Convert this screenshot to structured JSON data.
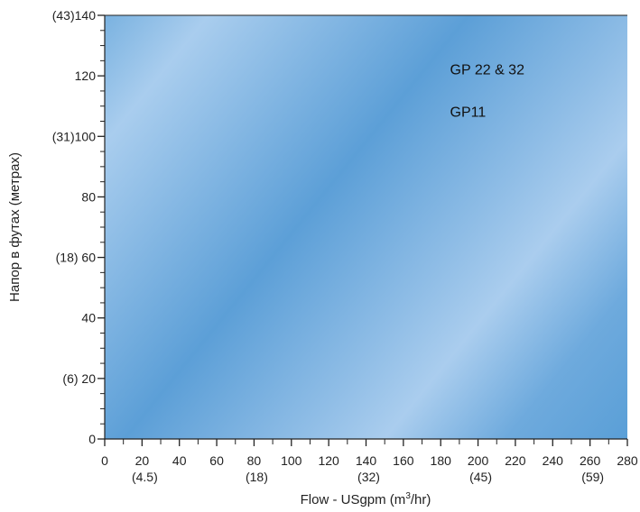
{
  "chart_data": {
    "type": "area",
    "title": "",
    "xlabel_main": "Flow  - USgpm (m",
    "xlabel_sup": "3",
    "xlabel_tail": "/hr)",
    "ylabel": "Напор в футах (метрах)",
    "xlim": [
      0,
      280
    ],
    "ylim": [
      0,
      140
    ],
    "x_ticks": [
      {
        "value": 0,
        "label": "0"
      },
      {
        "value": 20,
        "label": "20"
      },
      {
        "value": 40,
        "label": "40"
      },
      {
        "value": 60,
        "label": "60"
      },
      {
        "value": 80,
        "label": "80"
      },
      {
        "value": 100,
        "label": "100"
      },
      {
        "value": 120,
        "label": "120"
      },
      {
        "value": 140,
        "label": "140"
      },
      {
        "value": 160,
        "label": "160"
      },
      {
        "value": 180,
        "label": "180"
      },
      {
        "value": 200,
        "label": "200"
      },
      {
        "value": 220,
        "label": "220"
      },
      {
        "value": 240,
        "label": "240"
      },
      {
        "value": 260,
        "label": "260"
      },
      {
        "value": 280,
        "label": "280"
      }
    ],
    "x_secondary": [
      {
        "value": 20,
        "label": "(4.5)"
      },
      {
        "value": 80,
        "label": "(18)"
      },
      {
        "value": 140,
        "label": "(32)"
      },
      {
        "value": 200,
        "label": "(45)"
      },
      {
        "value": 260,
        "label": "(59)"
      }
    ],
    "y_ticks": [
      {
        "value": 0,
        "label": "0"
      },
      {
        "value": 20,
        "label": "(6) 20"
      },
      {
        "value": 40,
        "label": "40"
      },
      {
        "value": 60,
        "label": "(18) 60"
      },
      {
        "value": 80,
        "label": "80"
      },
      {
        "value": 100,
        "label": "(31)100"
      },
      {
        "value": 120,
        "label": "120"
      },
      {
        "value": 140,
        "label": "(43)140"
      }
    ],
    "x_minor_step": 10,
    "y_minor_step": 5,
    "series": [
      {
        "name": "GP 22 & 32",
        "values": []
      },
      {
        "name": "GP11",
        "values": []
      }
    ],
    "series_labels": [
      {
        "text": "GP 22 & 32",
        "x": 185,
        "y": 122
      },
      {
        "text": "GP11",
        "x": 185,
        "y": 108
      }
    ],
    "background_colors": [
      "#64a4da",
      "#a6cbec",
      "#5ca0d8"
    ]
  }
}
